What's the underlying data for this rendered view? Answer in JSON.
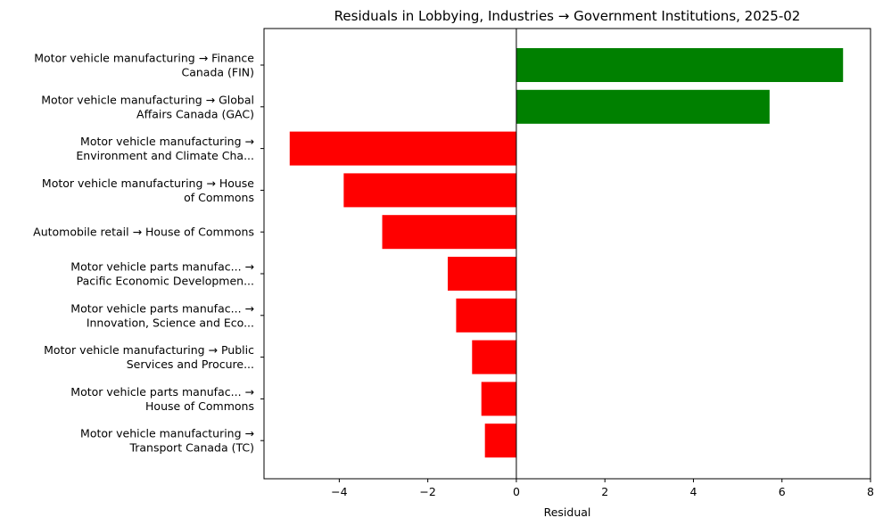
{
  "chart_data": {
    "type": "bar",
    "orientation": "horizontal",
    "title": "Residuals in Lobbying, Industries → Government Institutions, 2025-02",
    "xlabel": "Residual",
    "ylabel": "",
    "xlim": [
      -5.7,
      8
    ],
    "xticks": [
      -4,
      -2,
      0,
      2,
      4,
      6,
      8
    ],
    "xtick_labels": [
      "−4",
      "−2",
      "0",
      "2",
      "4",
      "6",
      "8"
    ],
    "grid": false,
    "colors": {
      "positive": "#008000",
      "negative": "#ff0000"
    },
    "categories": [
      [
        "Motor vehicle manufacturing → Finance",
        "Canada (FIN)"
      ],
      [
        "Motor vehicle manufacturing → Global",
        "Affairs Canada (GAC)"
      ],
      [
        "Motor vehicle manufacturing →",
        "Environment and Climate Cha..."
      ],
      [
        "Motor vehicle manufacturing → House",
        "of Commons"
      ],
      [
        "Automobile retail → House of Commons"
      ],
      [
        "Motor vehicle parts manufac... →",
        "Pacific Economic Developmen..."
      ],
      [
        "Motor vehicle parts manufac... →",
        "Innovation, Science and Eco..."
      ],
      [
        "Motor vehicle manufacturing → Public",
        "Services and Procure..."
      ],
      [
        "Motor vehicle parts manufac... →",
        "House of Commons"
      ],
      [
        "Motor vehicle manufacturing →",
        "Transport Canada (TC)"
      ]
    ],
    "values": [
      7.38,
      5.72,
      -5.12,
      -3.9,
      -3.03,
      -1.55,
      -1.36,
      -1.0,
      -0.79,
      -0.71
    ]
  }
}
